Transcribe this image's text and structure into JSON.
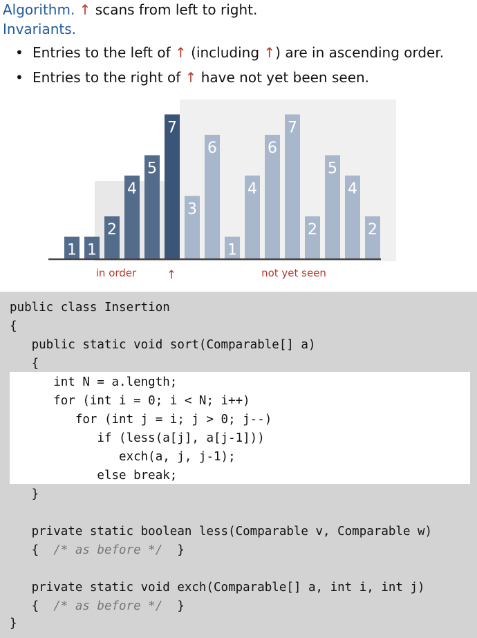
{
  "header": {
    "algorithm_label": "Algorithm.",
    "algorithm_text": " scans from left to right.",
    "invariants_label": "Invariants."
  },
  "pointer_glyph": "↑",
  "bullets": [
    {
      "before": "Entries to the left of ",
      "middle": " (including ",
      "after": ") are in ascending order."
    },
    {
      "before": "Entries to the right of ",
      "after": " have not yet been seen."
    }
  ],
  "bullet_glyph": "•",
  "chart_data": {
    "type": "bar",
    "values": [
      1,
      1,
      2,
      4,
      5,
      7,
      3,
      6,
      1,
      4,
      6,
      7,
      2,
      5,
      4,
      2
    ],
    "labels": [
      "1",
      "1",
      "2",
      "4",
      "5",
      "7",
      "3",
      "6",
      "1",
      "4",
      "6",
      "7",
      "2",
      "5",
      "4",
      "2"
    ],
    "pointer_index": 5,
    "regions": {
      "left": "in order",
      "right": "not yet seen"
    },
    "colors": {
      "sorted": "#546c8c",
      "sorted_current": "#3a5577",
      "unseen": "#a8b7cb",
      "unseen_bg": "#f0f0f0",
      "sorted_bg": "#e8e8e8",
      "baseline": "#444444"
    }
  },
  "code": {
    "lines": [
      "public class Insertion",
      "{",
      "   public static void sort(Comparable[] a)",
      "   {",
      "      int N = a.length;",
      "      for (int i = 0; i < N; i++)",
      "         for (int j = i; j > 0; j--)",
      "            if (less(a[j], a[j-1]))",
      "               exch(a, j, j-1);",
      "            else break;",
      "   }",
      "",
      "   private static boolean less(Comparable v, Comparable w)",
      "   {  ",
      "",
      "   private static void exch(Comparable[] a, int i, int j)",
      "   {  ",
      "}"
    ],
    "comment": "/* as before */",
    "brace_close": "  }"
  }
}
